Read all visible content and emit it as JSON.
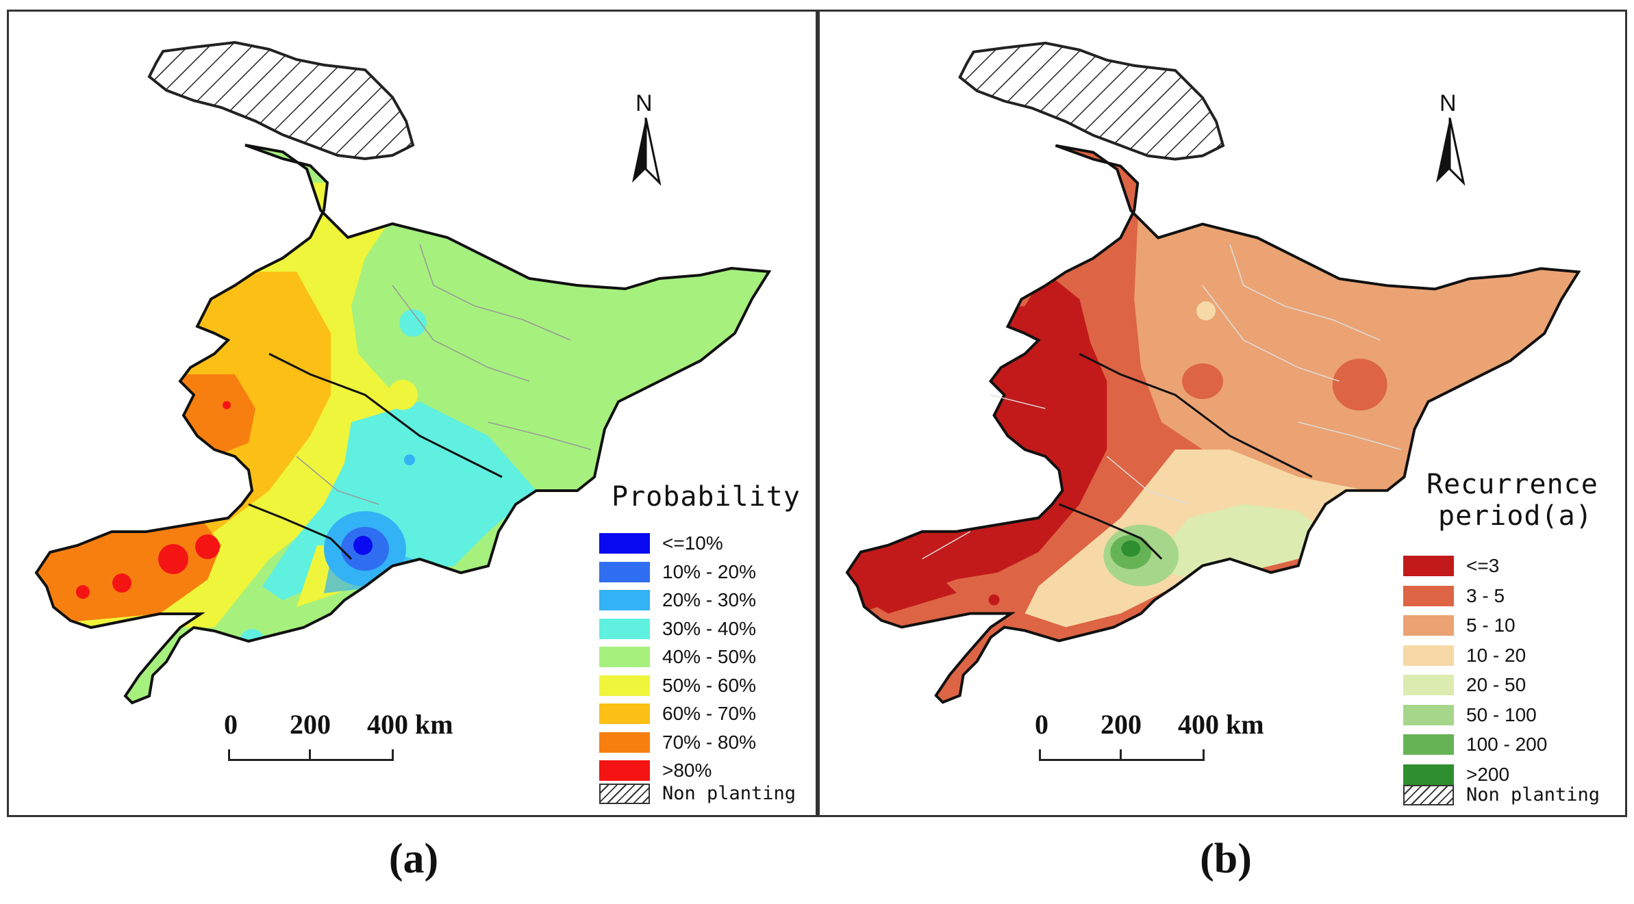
{
  "panel_a": {
    "caption": "(a)",
    "legend_title": "Probability",
    "legend": [
      {
        "label": "<=10%",
        "color": "#0a0af0"
      },
      {
        "label": "10% - 20%",
        "color": "#2f6ef0"
      },
      {
        "label": "20% - 30%",
        "color": "#33b2f5"
      },
      {
        "label": "30% - 40%",
        "color": "#5ff0e0"
      },
      {
        "label": "40% - 50%",
        "color": "#a6f07e"
      },
      {
        "label": "50% - 60%",
        "color": "#eef53a"
      },
      {
        "label": "60% - 70%",
        "color": "#fbbf16"
      },
      {
        "label": "70% - 80%",
        "color": "#f77f10"
      },
      {
        "label": ">80%",
        "color": "#f51414"
      }
    ],
    "non_planting": "Non planting",
    "scale": {
      "t0": "0",
      "t1": "200",
      "t2": "400 km"
    },
    "north": "N"
  },
  "panel_b": {
    "caption": "(b)",
    "legend_title_1": "Recurrence",
    "legend_title_2": "period(a)",
    "legend": [
      {
        "label": "<=3",
        "color": "#c21a1a"
      },
      {
        "label": "3 - 5",
        "color": "#dd6444"
      },
      {
        "label": "5 - 10",
        "color": "#eba373"
      },
      {
        "label": "10 - 20",
        "color": "#f6d9a6"
      },
      {
        "label": "20 - 50",
        "color": "#dcebb0"
      },
      {
        "label": "50 - 100",
        "color": "#a6d68a"
      },
      {
        "label": "100 - 200",
        "color": "#66b356"
      },
      {
        "label": ">200",
        "color": "#2f8f2f"
      }
    ],
    "non_planting": "Non planting",
    "scale": {
      "t0": "0",
      "t1": "200",
      "t2": "400 km"
    },
    "north": "N"
  }
}
